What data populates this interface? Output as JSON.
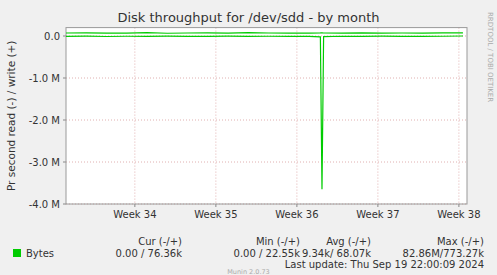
{
  "chart_data": {
    "type": "line",
    "title": "Disk throughput for /dev/sdd - by month",
    "y_label": "Pr second read (-) / write (+)",
    "watermark": "RRDTOOL / TOBI OETIKER",
    "x": [
      33.15,
      33.4,
      33.65,
      33.9,
      34.15,
      34.4,
      34.65,
      34.9,
      35.15,
      35.4,
      35.65,
      35.9,
      36.15,
      36.29,
      36.31,
      36.33,
      36.55,
      36.8,
      37.05,
      37.3,
      37.55,
      37.8,
      38.05
    ],
    "series": [
      {
        "name": "Bytes",
        "color": "#00cc00",
        "values": [
          72000,
          75000,
          68000,
          70000,
          78000,
          66000,
          71000,
          74000,
          69000,
          80000,
          72000,
          67000,
          70000,
          73000,
          76000,
          71000,
          68000,
          75000,
          70000,
          72000,
          69000,
          74000,
          76360
        ]
      },
      {
        "color": "#00cc00",
        "values": [
          -8000,
          -5000,
          -12000,
          -6000,
          -9000,
          -4000,
          -7000,
          -10000,
          -5000,
          -8000,
          -6000,
          -9000,
          -7000,
          -20000,
          -3650000,
          -15000,
          -6000,
          -8000,
          -5000,
          -7000,
          -9000,
          -6000,
          0
        ]
      }
    ],
    "xlim": [
      33.15,
      38.1
    ],
    "xticks": [
      {
        "value": 34,
        "label": "Week 34"
      },
      {
        "value": 35,
        "label": "Week 35"
      },
      {
        "value": 36,
        "label": "Week 36"
      },
      {
        "value": 37,
        "label": "Week 37"
      },
      {
        "value": 38,
        "label": "Week 38"
      }
    ],
    "ylim": [
      -4000000,
      200000
    ],
    "yticks": [
      {
        "value": 0,
        "label": "0.0"
      },
      {
        "value": -1000000,
        "label": "-1.0 M"
      },
      {
        "value": -2000000,
        "label": "-2.0 M"
      },
      {
        "value": -3000000,
        "label": "-3.0 M"
      },
      {
        "value": -4000000,
        "label": "-4.0 M"
      }
    ],
    "grid": true,
    "stats_headers": [
      "Cur (-/+)",
      "Min (-/+)",
      "Avg (-/+)",
      "Max (-/+)"
    ],
    "stats": [
      "0.00 / 76.36k",
      "0.00 / 22.55k",
      "9.34k/ 68.07k",
      "82.86M/773.27k"
    ],
    "last_update": "Last update: Thu Sep 19 22:00:09 2024",
    "footer": "Munin 2.0.73"
  }
}
